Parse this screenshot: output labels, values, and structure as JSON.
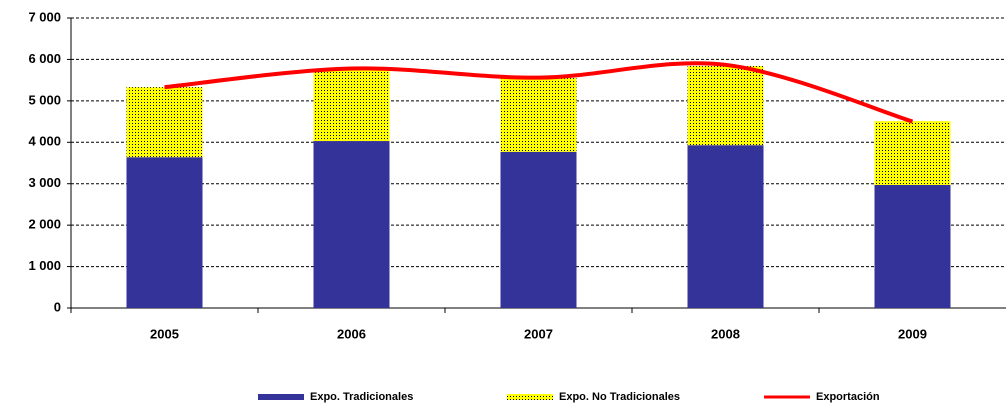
{
  "chart_data": {
    "type": "bar_line",
    "categories": [
      "2005",
      "2006",
      "2007",
      "2008",
      "2009"
    ],
    "series": [
      {
        "name": "Expo. Tradicionales",
        "color": "#333399",
        "stack": true,
        "values": [
          3640,
          4030,
          3770,
          3930,
          2970
        ]
      },
      {
        "name": "Expo. No Tradicionales",
        "color": "#ffff00",
        "stack": true,
        "values": [
          1690,
          1710,
          1780,
          1910,
          1540
        ]
      },
      {
        "name": "Exportación",
        "color": "#ff0000",
        "kind": "line",
        "values": [
          5330,
          5780,
          5560,
          5870,
          4500
        ]
      }
    ],
    "ylim": [
      0,
      7000
    ],
    "yticks": [
      0,
      {
        "value": 1000,
        "label": "1 000"
      },
      {
        "value": 2000,
        "label": "2 000"
      },
      {
        "value": 3000,
        "label": "3 000"
      },
      {
        "value": 4000,
        "label": "4 000"
      },
      {
        "value": 5000,
        "label": "5 000"
      },
      {
        "value": 6000,
        "label": "6 000"
      },
      {
        "value": 7000,
        "label": "7 000"
      }
    ],
    "grid": true,
    "legend": "bottom"
  }
}
